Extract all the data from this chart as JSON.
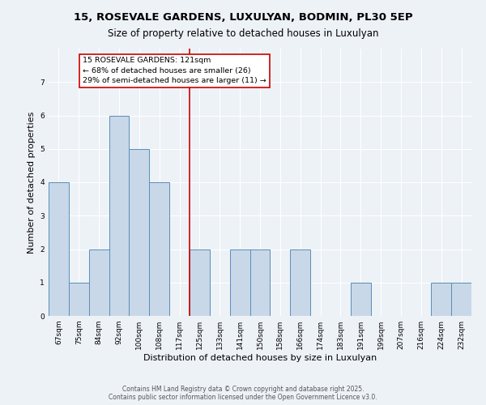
{
  "title": "15, ROSEVALE GARDENS, LUXULYAN, BODMIN, PL30 5EP",
  "subtitle": "Size of property relative to detached houses in Luxulyan",
  "xlabel": "Distribution of detached houses by size in Luxulyan",
  "ylabel": "Number of detached properties",
  "bin_labels": [
    "67sqm",
    "75sqm",
    "84sqm",
    "92sqm",
    "100sqm",
    "108sqm",
    "117sqm",
    "125sqm",
    "133sqm",
    "141sqm",
    "150sqm",
    "158sqm",
    "166sqm",
    "174sqm",
    "183sqm",
    "191sqm",
    "199sqm",
    "207sqm",
    "216sqm",
    "224sqm",
    "232sqm"
  ],
  "bar_heights": [
    4,
    1,
    2,
    6,
    5,
    4,
    0,
    2,
    0,
    2,
    2,
    0,
    2,
    0,
    0,
    1,
    0,
    0,
    0,
    1,
    1
  ],
  "bar_color": "#c8d8e8",
  "bar_edgecolor": "#5b8db8",
  "vline_x": 7.0,
  "vline_color": "#cc0000",
  "annotation_text": "15 ROSEVALE GARDENS: 121sqm\n← 68% of detached houses are smaller (26)\n29% of semi-detached houses are larger (11) →",
  "annotation_box_facecolor": "#ffffff",
  "annotation_box_edgecolor": "#cc0000",
  "ylim": [
    0,
    8
  ],
  "yticks": [
    0,
    1,
    2,
    3,
    4,
    5,
    6,
    7
  ],
  "footer_text": "Contains HM Land Registry data © Crown copyright and database right 2025.\nContains public sector information licensed under the Open Government Licence v3.0.",
  "bg_color": "#edf2f7",
  "grid_color": "#ffffff",
  "title_fontsize": 9.5,
  "subtitle_fontsize": 8.5,
  "label_fontsize": 8,
  "tick_fontsize": 6.5,
  "annotation_fontsize": 6.8,
  "footer_fontsize": 5.5
}
